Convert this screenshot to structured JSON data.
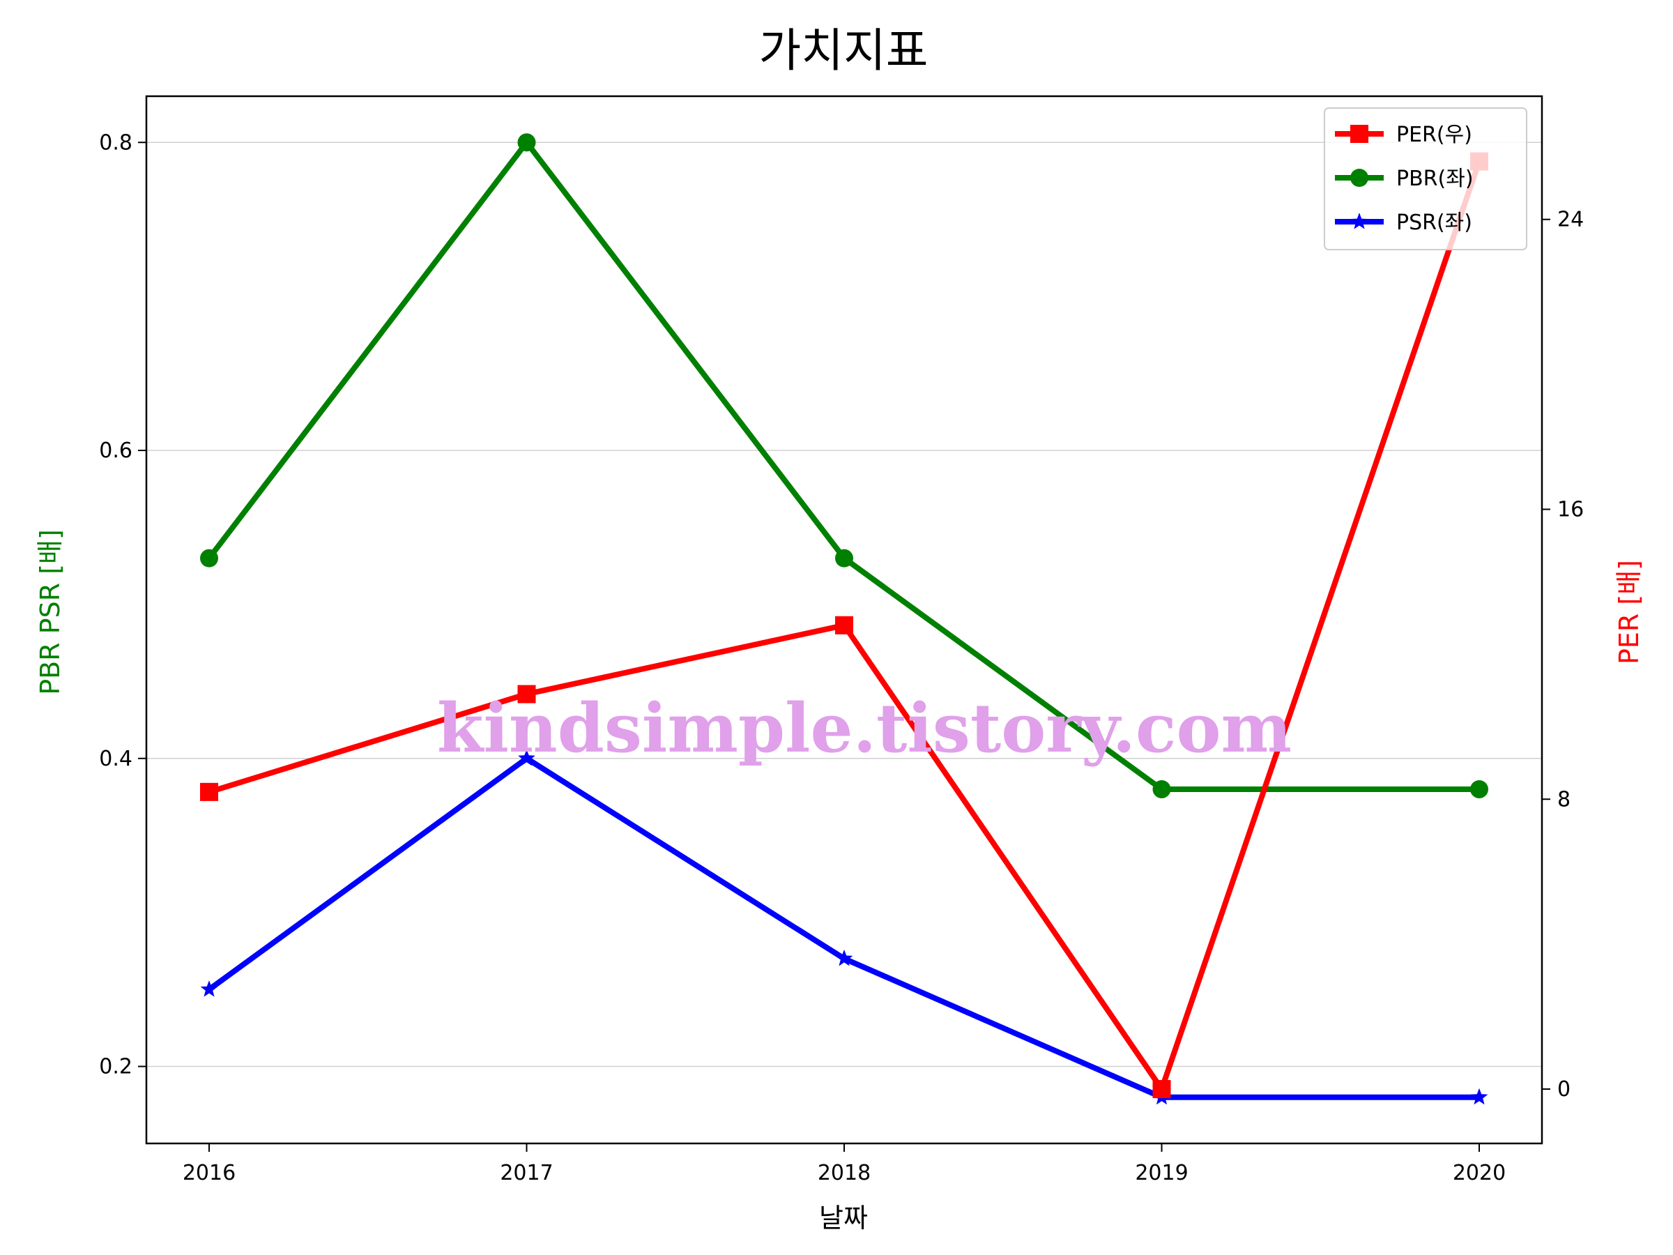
{
  "chart_data": {
    "type": "line",
    "title": "가치지표",
    "xlabel": "날짜",
    "ylabel_left": "PBR PSR [배]",
    "ylabel_right": "PER [배]",
    "categories": [
      "2016",
      "2017",
      "2018",
      "2019",
      "2020"
    ],
    "left_axis": {
      "ylim": [
        0.15,
        0.83
      ],
      "ticks": [
        "0.2",
        "0.4",
        "0.6",
        "0.8"
      ],
      "color": "#008000"
    },
    "right_axis": {
      "ylim": [
        -1.5,
        27.4
      ],
      "ticks": [
        "0",
        "8",
        "16",
        "24"
      ],
      "color": "#ff0000"
    },
    "grid": true,
    "legend_position": "top-right",
    "series": [
      {
        "name": "PER(우)",
        "axis": "right",
        "color": "#ff0000",
        "marker": "square",
        "values": [
          8.2,
          10.9,
          12.8,
          0.0,
          25.6
        ]
      },
      {
        "name": "PBR(좌)",
        "axis": "left",
        "color": "#008000",
        "marker": "circle",
        "values": [
          0.53,
          0.8,
          0.53,
          0.38,
          0.38
        ]
      },
      {
        "name": "PSR(좌)",
        "axis": "left",
        "color": "#0000ff",
        "marker": "star",
        "values": [
          0.25,
          0.4,
          0.27,
          0.18,
          0.18
        ]
      }
    ],
    "watermark": "kindsimple.tistory.com"
  }
}
